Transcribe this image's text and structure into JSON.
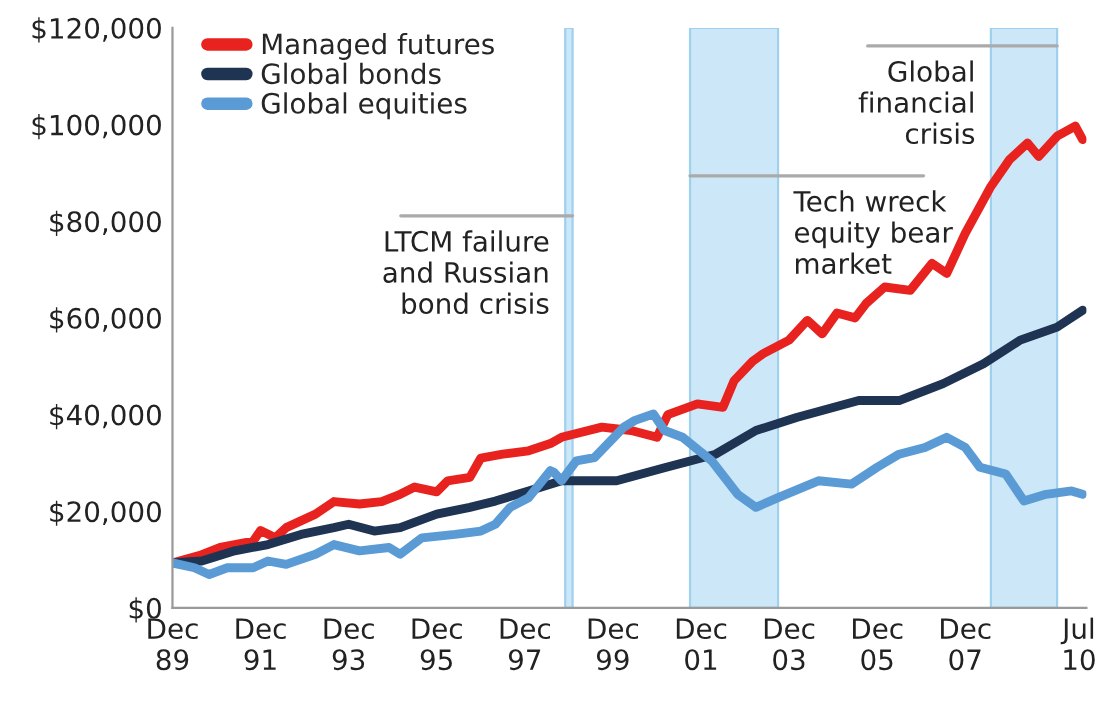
{
  "chart_data": {
    "type": "line",
    "xlim": [
      "1989-12",
      "2010-09"
    ],
    "xticks": [
      {
        "value": "1989-12",
        "label": "Dec\n89"
      },
      {
        "value": "1991-12",
        "label": "Dec\n91"
      },
      {
        "value": "1993-12",
        "label": "Dec\n93"
      },
      {
        "value": "1995-12",
        "label": "Dec\n95"
      },
      {
        "value": "1997-12",
        "label": "Dec\n97"
      },
      {
        "value": "1999-12",
        "label": "Dec\n99"
      },
      {
        "value": "2001-12",
        "label": "Dec\n01"
      },
      {
        "value": "2003-12",
        "label": "Dec\n03"
      },
      {
        "value": "2005-12",
        "label": "Dec\n05"
      },
      {
        "value": "2007-12",
        "label": "Dec\n07"
      },
      {
        "value": "2010-07",
        "label": "Jul\n10"
      }
    ],
    "ylim": [
      0,
      120000
    ],
    "yticks": [
      {
        "value": 0,
        "label": "$0"
      },
      {
        "value": 20000,
        "label": "$20,000"
      },
      {
        "value": 40000,
        "label": "$40,000"
      },
      {
        "value": 60000,
        "label": "$60,000"
      },
      {
        "value": 80000,
        "label": "$80,000"
      },
      {
        "value": 100000,
        "label": "$100,000"
      },
      {
        "value": 120000,
        "label": "$120,000"
      }
    ],
    "grid": false,
    "legend": "top left",
    "marker": "none",
    "line_style": "solid",
    "bands": [
      {
        "axis": "x",
        "from": "1998-11",
        "to": "1999-01",
        "label": "LTCM failure\nand Russian\nbond crisis",
        "color": "#cce8f8"
      },
      {
        "axis": "x",
        "from": "2001-09",
        "to": "2003-09",
        "label": "Tech wreck\nequity bear\nmarket",
        "color": "#cce8f8"
      },
      {
        "axis": "x",
        "from": "2008-07",
        "to": "2010-01",
        "label": "Global\nfinancial\ncrisis",
        "color": "#cce8f8"
      }
    ],
    "series": [
      {
        "name": "Managed futures",
        "color": "#e8231f",
        "x": [
          "1989-12",
          "1990-08",
          "1991-01",
          "1991-10",
          "1991-12",
          "1992-04",
          "1992-07",
          "1993-03",
          "1993-08",
          "1994-03",
          "1994-09",
          "1995-02",
          "1995-06",
          "1995-12",
          "1996-03",
          "1996-09",
          "1996-12",
          "1997-06",
          "1998-01",
          "1998-07",
          "1998-10",
          "1999-09",
          "2000-05",
          "2000-12",
          "2001-03",
          "2001-11",
          "2002-06",
          "2002-09",
          "2003-02",
          "2003-05",
          "2003-12",
          "2004-05",
          "2004-09",
          "2005-01",
          "2005-06",
          "2005-09",
          "2006-02",
          "2006-09",
          "2007-03",
          "2007-07",
          "2007-12",
          "2008-05",
          "2008-07",
          "2008-12",
          "2009-05",
          "2009-08",
          "2010-01",
          "2010-06",
          "2010-08"
        ],
        "values": [
          9300,
          11000,
          12500,
          13800,
          16000,
          14500,
          16600,
          19400,
          22000,
          21500,
          22000,
          23500,
          25000,
          24000,
          26300,
          27000,
          31000,
          31800,
          32500,
          34000,
          35300,
          37400,
          36700,
          35300,
          40000,
          42200,
          41500,
          47000,
          51000,
          52600,
          55400,
          59500,
          56700,
          61000,
          60000,
          63000,
          66400,
          65700,
          71300,
          69200,
          77500,
          84400,
          87200,
          92700,
          96200,
          93400,
          97600,
          99700,
          96900
        ]
      },
      {
        "name": "Global bonds",
        "color": "#1f3352",
        "x": [
          "1989-12",
          "1990-08",
          "1991-05",
          "1992-02",
          "1992-11",
          "1993-08",
          "1993-12",
          "1994-07",
          "1995-02",
          "1995-12",
          "1996-09",
          "1997-04",
          "1998-01",
          "1998-10",
          "2000-01",
          "2001-02",
          "2002-04",
          "2003-03",
          "2004-02",
          "2005-07",
          "2006-06",
          "2007-06",
          "2008-05",
          "2009-03",
          "2010-01",
          "2010-08"
        ],
        "values": [
          9300,
          9700,
          11800,
          13100,
          15200,
          16600,
          17300,
          15900,
          16600,
          19400,
          20800,
          22100,
          24200,
          26300,
          26300,
          29000,
          31800,
          36700,
          39400,
          42900,
          42900,
          46400,
          50500,
          55400,
          58100,
          61600
        ]
      },
      {
        "name": "Global equities",
        "color": "#5b9bd5",
        "x": [
          "1989-12",
          "1990-06",
          "1990-10",
          "1991-03",
          "1991-10",
          "1992-02",
          "1992-07",
          "1993-03",
          "1993-08",
          "1994-03",
          "1994-11",
          "1995-02",
          "1995-08",
          "1996-05",
          "1996-12",
          "1997-04",
          "1997-08",
          "1998-01",
          "1998-07",
          "1998-08",
          "1998-10",
          "1999-02",
          "1999-07",
          "2000-03",
          "2000-06",
          "2000-11",
          "2001-02",
          "2001-07",
          "2002-03",
          "2002-10",
          "2003-03",
          "2003-09",
          "2004-08",
          "2005-05",
          "2005-12",
          "2006-06",
          "2007-01",
          "2007-07",
          "2007-12",
          "2008-04",
          "2008-11",
          "2009-04",
          "2009-10",
          "2010-05",
          "2010-08"
        ],
        "values": [
          9300,
          8300,
          6900,
          8300,
          8300,
          9700,
          9000,
          11100,
          13100,
          11800,
          12500,
          11100,
          14500,
          15200,
          15900,
          17300,
          20800,
          22800,
          28400,
          28000,
          26300,
          30400,
          31100,
          37400,
          38800,
          40100,
          36700,
          35300,
          30400,
          23500,
          20800,
          22800,
          26300,
          25600,
          29100,
          31800,
          33200,
          35300,
          33200,
          29100,
          27700,
          22100,
          23500,
          24200,
          23500
        ]
      }
    ]
  }
}
